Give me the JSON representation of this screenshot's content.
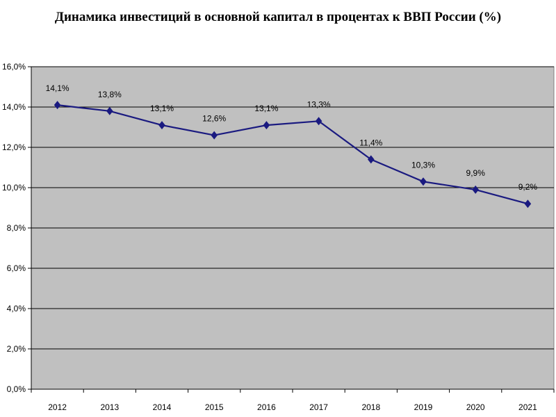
{
  "chart_data": {
    "type": "line",
    "title": "Динамика инвестиций в основной капитал в процентах к ВВП России (%)",
    "xlabel": "",
    "ylabel": "",
    "categories": [
      "2012",
      "2013",
      "2014",
      "2015",
      "2016",
      "2017",
      "2018",
      "2019",
      "2020",
      "2021"
    ],
    "series": [
      {
        "values": [
          14.1,
          13.8,
          13.1,
          12.6,
          13.1,
          13.3,
          11.4,
          10.3,
          9.9,
          9.2
        ],
        "labels": [
          "14,1%",
          "13,8%",
          "13,1%",
          "12,6%",
          "13,1%",
          "13,3%",
          "11,4%",
          "10,3%",
          "9,9%",
          "9,2%"
        ],
        "color": "#1a1a80"
      }
    ],
    "ylim": [
      0,
      16
    ],
    "y_ticks": [
      0,
      2,
      4,
      6,
      8,
      10,
      12,
      14,
      16
    ],
    "y_tick_labels": [
      "0,0%",
      "2,0%",
      "4,0%",
      "6,0%",
      "8,0%",
      "10,0%",
      "12,0%",
      "14,0%",
      "16,0%"
    ],
    "grid": true,
    "legend": "none",
    "plot_background": "#c0c0c0",
    "marker": "diamond"
  }
}
